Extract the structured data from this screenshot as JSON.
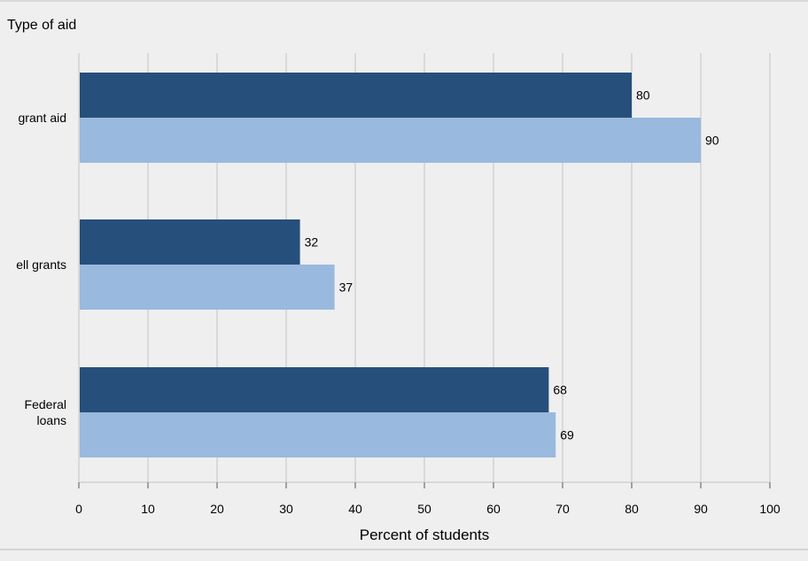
{
  "chart_data": {
    "type": "bar",
    "orientation": "horizontal",
    "ylabel": "Type of aid",
    "xlabel": "Percent of students",
    "categories": [
      [
        "grant aid"
      ],
      [
        "ell grants"
      ],
      [
        "Federal",
        "loans"
      ]
    ],
    "series": [
      {
        "color": "#264f7b",
        "values": [
          80,
          32,
          68
        ]
      },
      {
        "color": "#9ab9de",
        "values": [
          90,
          37,
          69
        ]
      }
    ],
    "xlim": [
      0,
      100
    ],
    "xticks": [
      0,
      10,
      20,
      30,
      40,
      50,
      60,
      70,
      80,
      90,
      100
    ],
    "grid": true,
    "legend": "none"
  },
  "colors": {
    "background": "#efefef",
    "grid": "#d9d9d9"
  }
}
